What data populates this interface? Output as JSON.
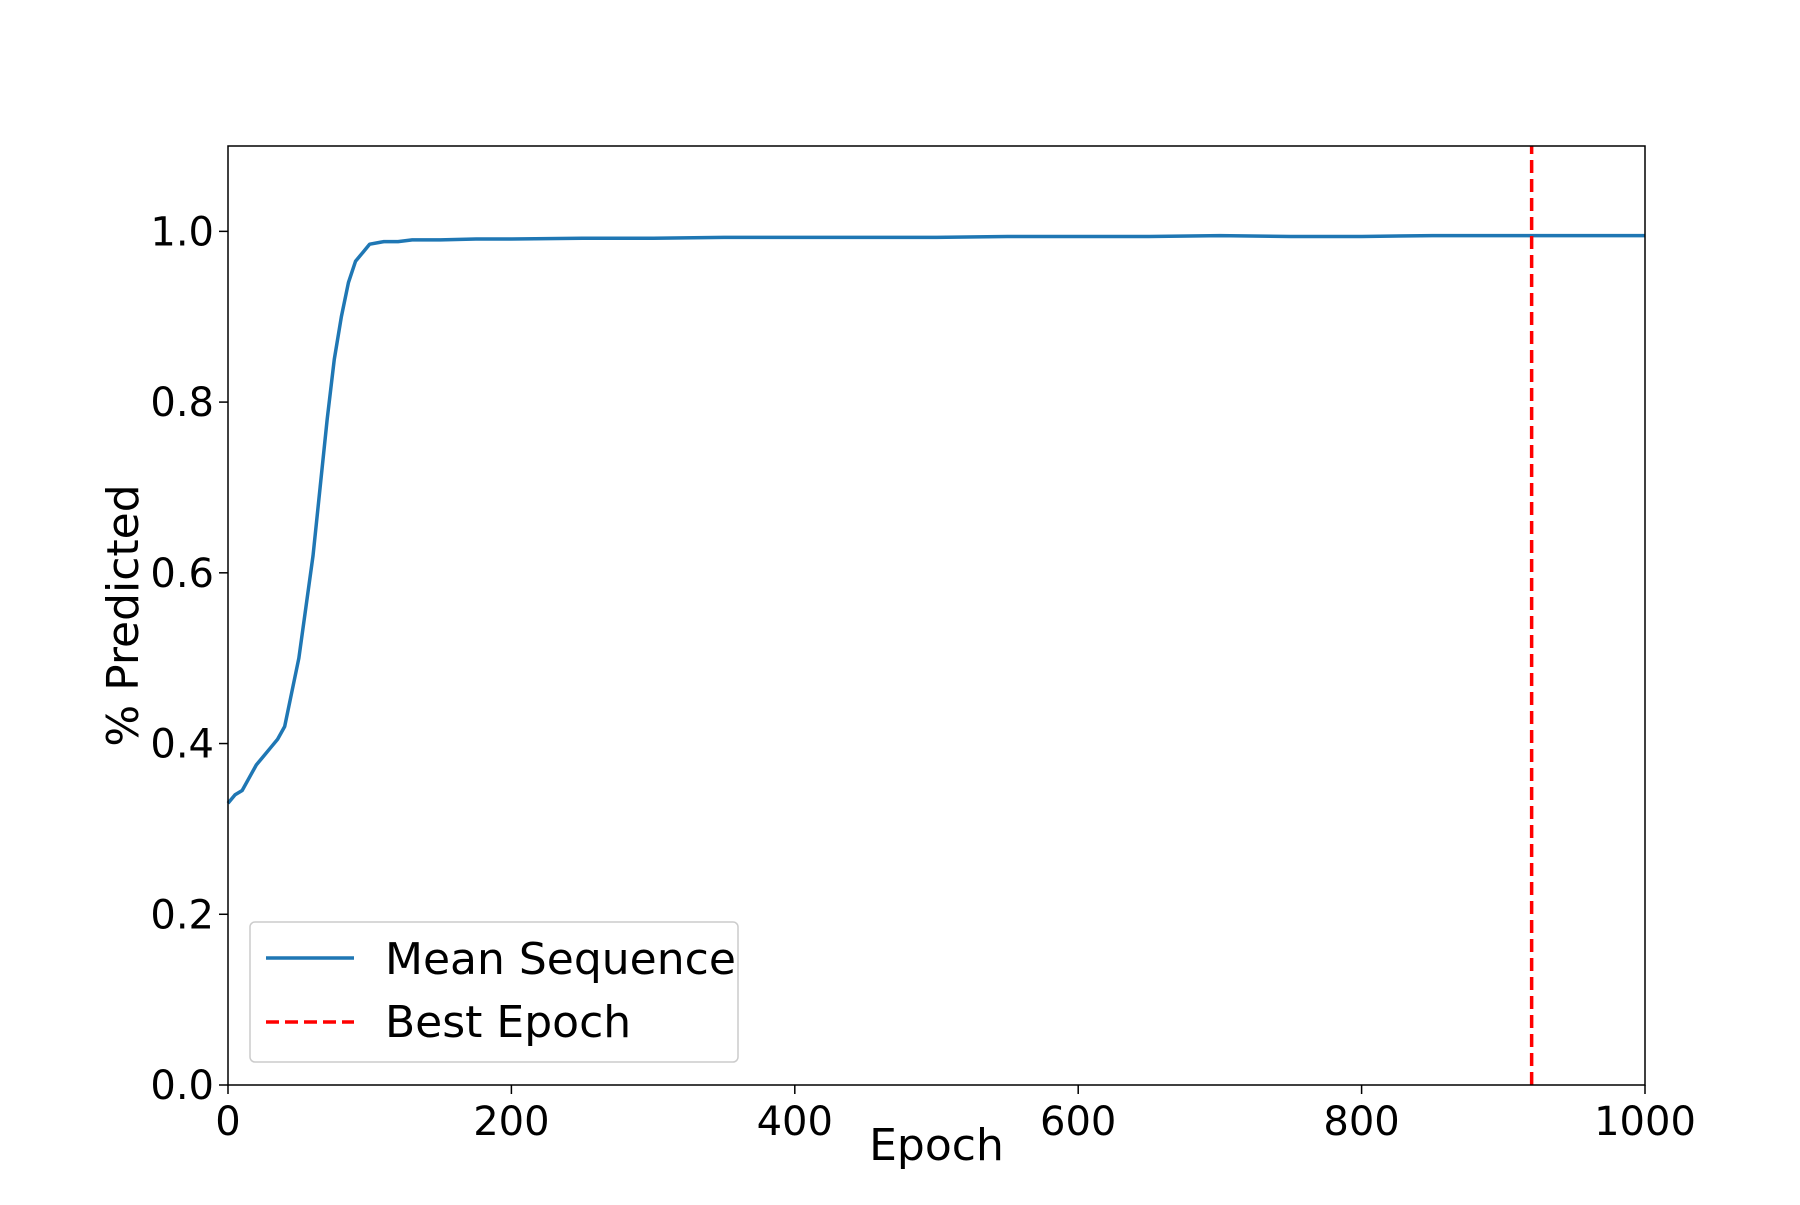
{
  "chart_data": {
    "type": "line",
    "title": "",
    "xlabel": "Epoch",
    "ylabel": "% Predicted",
    "xlim": [
      0,
      1000
    ],
    "ylim": [
      0.0,
      1.1
    ],
    "xticks": [
      0,
      200,
      400,
      600,
      800,
      1000
    ],
    "xtick_labels": [
      "0",
      "200",
      "400",
      "600",
      "800",
      "1000"
    ],
    "yticks": [
      0.0,
      0.2,
      0.4,
      0.6,
      0.8,
      1.0
    ],
    "ytick_labels": [
      "0.0",
      "0.2",
      "0.4",
      "0.6",
      "0.8",
      "1.0"
    ],
    "grid": false,
    "legend_position": "lower-left",
    "series": [
      {
        "name": "Mean Sequence",
        "color": "#1f77b4",
        "style": "solid",
        "x": [
          0,
          5,
          10,
          15,
          20,
          25,
          30,
          35,
          40,
          45,
          50,
          55,
          60,
          65,
          70,
          75,
          80,
          85,
          90,
          95,
          100,
          110,
          120,
          130,
          140,
          150,
          175,
          200,
          250,
          300,
          350,
          400,
          450,
          500,
          550,
          600,
          650,
          700,
          750,
          800,
          850,
          900,
          950,
          1000
        ],
        "values": [
          0.33,
          0.34,
          0.345,
          0.36,
          0.375,
          0.385,
          0.395,
          0.405,
          0.42,
          0.46,
          0.5,
          0.56,
          0.62,
          0.7,
          0.78,
          0.85,
          0.9,
          0.94,
          0.965,
          0.975,
          0.985,
          0.988,
          0.988,
          0.99,
          0.99,
          0.99,
          0.991,
          0.991,
          0.992,
          0.992,
          0.993,
          0.993,
          0.993,
          0.993,
          0.994,
          0.994,
          0.994,
          0.995,
          0.994,
          0.994,
          0.995,
          0.995,
          0.995,
          0.995
        ]
      },
      {
        "name": "Best Epoch",
        "color": "#ff0000",
        "style": "dashed",
        "x": [
          920,
          920
        ],
        "values": [
          0.0,
          1.1
        ]
      }
    ]
  }
}
